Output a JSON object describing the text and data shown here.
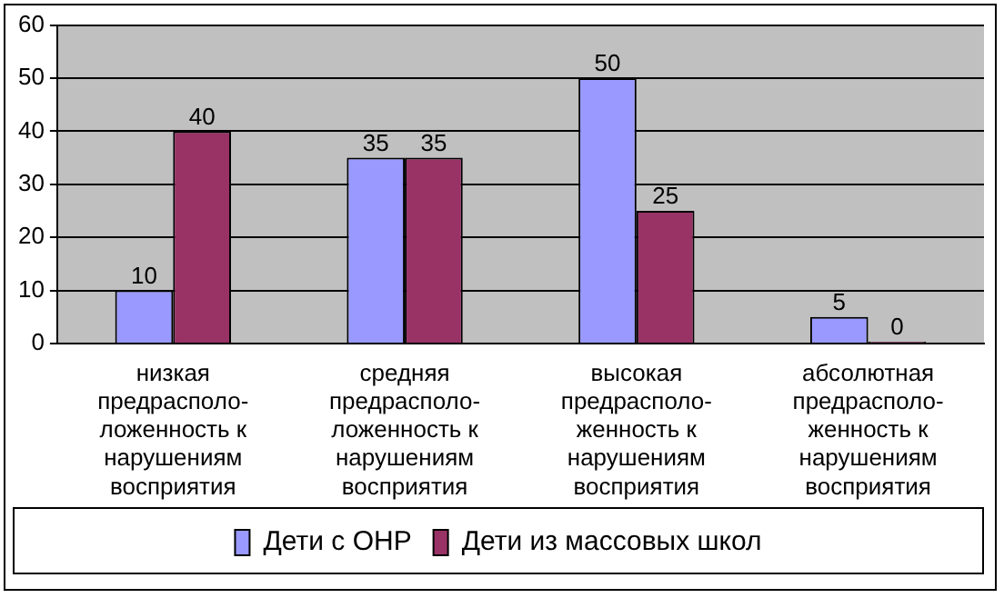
{
  "chart_data": {
    "type": "bar",
    "categories": [
      "низкая\nпредрасполо-\nложенность к\nнарушениям\nвосприятия",
      "средняя\nпредрасполо-\nложенность к\nнарушениям\nвосприятия",
      "высокая\nпредрасполо-\nженность к\nнарушениям\nвосприятия",
      "абсолютная\nпредрасполо-\nженность к\nнарушениям\nвосприятия"
    ],
    "series": [
      {
        "name": "Дети с ОНР",
        "color": "#9999ff",
        "values": [
          10,
          35,
          50,
          5
        ]
      },
      {
        "name": "Дети из массовых школ",
        "color": "#993366",
        "values": [
          40,
          35,
          25,
          0
        ]
      }
    ],
    "ylim": [
      0,
      60
    ],
    "yticks": [
      0,
      10,
      20,
      30,
      40,
      50,
      60
    ],
    "grid": "y",
    "legend": "bottom",
    "data_labels": true
  }
}
